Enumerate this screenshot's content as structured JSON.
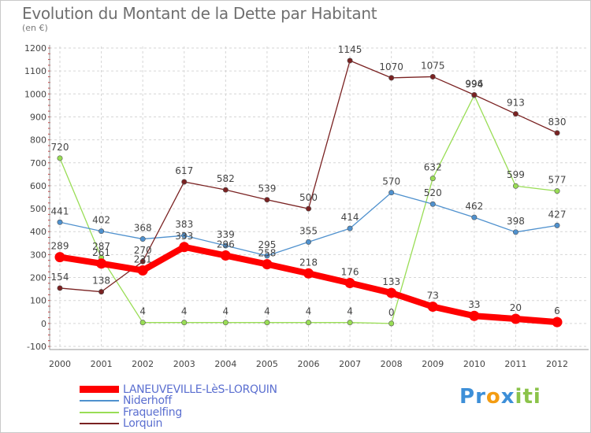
{
  "title": "Evolution du Montant de la Dette par Habitant",
  "unit": "(en €)",
  "chart_data": {
    "type": "line",
    "x": [
      "2000",
      "2001",
      "2002",
      "2003",
      "2004",
      "2005",
      "2006",
      "2007",
      "2008",
      "2009",
      "2010",
      "2011",
      "2012"
    ],
    "ylim": [
      -100,
      1200
    ],
    "yticks": [
      -100,
      0,
      100,
      200,
      300,
      400,
      500,
      600,
      700,
      800,
      900,
      1000,
      1100,
      1200
    ],
    "grid": true,
    "legend": "bottom-left",
    "series": [
      {
        "name": "LANEUVEVILLE-LèS-LORQUIN",
        "color": "#ff0000",
        "values": [
          289,
          261,
          231,
          333,
          296,
          258,
          218,
          176,
          133,
          73,
          33,
          20,
          6
        ]
      },
      {
        "name": "Niderhoff",
        "color": "#4f91ce",
        "values": [
          441,
          402,
          368,
          383,
          339,
          295,
          355,
          414,
          570,
          520,
          462,
          398,
          427
        ]
      },
      {
        "name": "Fraquelfing",
        "color": "#99dd55",
        "values": [
          720,
          287,
          4,
          4,
          4,
          4,
          4,
          4,
          0,
          632,
          994,
          599,
          577
        ]
      },
      {
        "name": "Lorquin",
        "color": "#7a2222",
        "values": [
          154,
          138,
          270,
          617,
          582,
          539,
          500,
          1145,
          1070,
          1075,
          996,
          913,
          830
        ]
      }
    ]
  },
  "logo": {
    "letters": [
      "P",
      "r",
      "o",
      "x",
      "i",
      "t",
      "i"
    ],
    "colors": [
      "#3d8fd8",
      "#3d8fd8",
      "#f39c12",
      "#3d8fd8",
      "#8bc34a",
      "#8bc34a",
      "#8bc34a"
    ]
  }
}
